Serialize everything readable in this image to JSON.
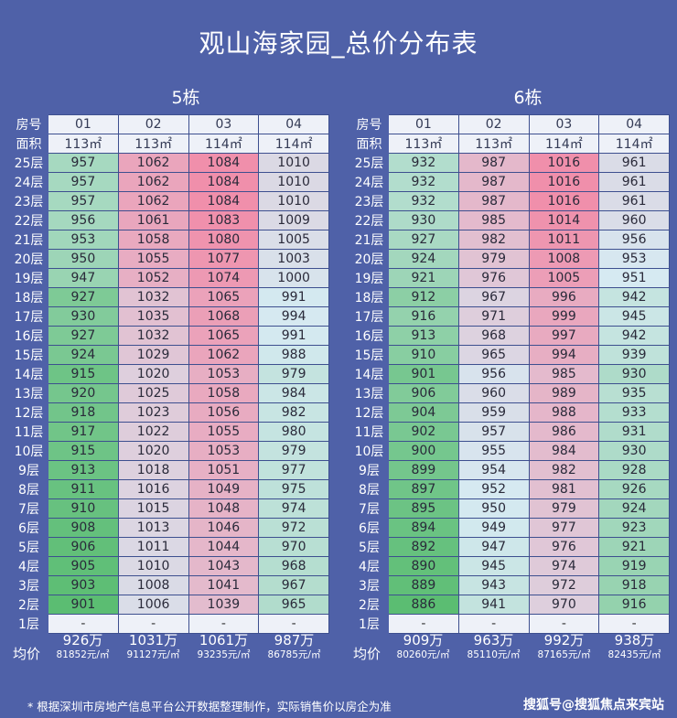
{
  "title": "观山海家园_总价分布表",
  "header_labels": {
    "room": "房号",
    "area": "面积",
    "avg": "均价"
  },
  "empty_mark": "-",
  "buildings": [
    {
      "name": "5栋",
      "units": [
        "01",
        "02",
        "03",
        "04"
      ],
      "areas": [
        "113㎡",
        "113㎡",
        "114㎡",
        "114㎡"
      ],
      "floors": [
        {
          "floor": "25层",
          "prices": [
            "957",
            "1062",
            "1084",
            "1010"
          ]
        },
        {
          "floor": "24层",
          "prices": [
            "957",
            "1062",
            "1084",
            "1010"
          ]
        },
        {
          "floor": "23层",
          "prices": [
            "957",
            "1062",
            "1084",
            "1010"
          ]
        },
        {
          "floor": "22层",
          "prices": [
            "956",
            "1061",
            "1083",
            "1009"
          ]
        },
        {
          "floor": "21层",
          "prices": [
            "953",
            "1058",
            "1080",
            "1005"
          ]
        },
        {
          "floor": "20层",
          "prices": [
            "950",
            "1055",
            "1077",
            "1003"
          ]
        },
        {
          "floor": "19层",
          "prices": [
            "947",
            "1052",
            "1074",
            "1000"
          ]
        },
        {
          "floor": "18层",
          "prices": [
            "927",
            "1032",
            "1065",
            "991"
          ]
        },
        {
          "floor": "17层",
          "prices": [
            "930",
            "1035",
            "1068",
            "994"
          ]
        },
        {
          "floor": "16层",
          "prices": [
            "927",
            "1032",
            "1065",
            "991"
          ]
        },
        {
          "floor": "15层",
          "prices": [
            "924",
            "1029",
            "1062",
            "988"
          ]
        },
        {
          "floor": "14层",
          "prices": [
            "915",
            "1020",
            "1053",
            "979"
          ]
        },
        {
          "floor": "13层",
          "prices": [
            "920",
            "1025",
            "1058",
            "984"
          ]
        },
        {
          "floor": "12层",
          "prices": [
            "918",
            "1023",
            "1056",
            "982"
          ]
        },
        {
          "floor": "11层",
          "prices": [
            "917",
            "1022",
            "1055",
            "980"
          ]
        },
        {
          "floor": "10层",
          "prices": [
            "915",
            "1020",
            "1053",
            "979"
          ]
        },
        {
          "floor": "9层",
          "prices": [
            "913",
            "1018",
            "1051",
            "977"
          ]
        },
        {
          "floor": "8层",
          "prices": [
            "911",
            "1016",
            "1049",
            "975"
          ]
        },
        {
          "floor": "7层",
          "prices": [
            "910",
            "1015",
            "1048",
            "974"
          ]
        },
        {
          "floor": "6层",
          "prices": [
            "908",
            "1013",
            "1046",
            "972"
          ]
        },
        {
          "floor": "5层",
          "prices": [
            "906",
            "1011",
            "1044",
            "970"
          ]
        },
        {
          "floor": "4层",
          "prices": [
            "905",
            "1010",
            "1043",
            "968"
          ]
        },
        {
          "floor": "3层",
          "prices": [
            "903",
            "1008",
            "1041",
            "967"
          ]
        },
        {
          "floor": "2层",
          "prices": [
            "901",
            "1006",
            "1039",
            "965"
          ]
        },
        {
          "floor": "1层",
          "prices": [
            "-",
            "-",
            "-",
            "-"
          ]
        }
      ],
      "totals": [
        "926万",
        "1031万",
        "1061万",
        "987万"
      ],
      "unit_prices": [
        "81852元/㎡",
        "91127元/㎡",
        "93235元/㎡",
        "86785元/㎡"
      ]
    },
    {
      "name": "6栋",
      "units": [
        "01",
        "02",
        "03",
        "04"
      ],
      "areas": [
        "113㎡",
        "113㎡",
        "114㎡",
        "114㎡"
      ],
      "floors": [
        {
          "floor": "25层",
          "prices": [
            "932",
            "987",
            "1016",
            "961"
          ]
        },
        {
          "floor": "24层",
          "prices": [
            "932",
            "987",
            "1016",
            "961"
          ]
        },
        {
          "floor": "23层",
          "prices": [
            "932",
            "987",
            "1016",
            "961"
          ]
        },
        {
          "floor": "22层",
          "prices": [
            "930",
            "985",
            "1014",
            "960"
          ]
        },
        {
          "floor": "21层",
          "prices": [
            "927",
            "982",
            "1011",
            "956"
          ]
        },
        {
          "floor": "20层",
          "prices": [
            "924",
            "979",
            "1008",
            "953"
          ]
        },
        {
          "floor": "19层",
          "prices": [
            "921",
            "976",
            "1005",
            "951"
          ]
        },
        {
          "floor": "18层",
          "prices": [
            "912",
            "967",
            "996",
            "942"
          ]
        },
        {
          "floor": "17层",
          "prices": [
            "916",
            "971",
            "999",
            "945"
          ]
        },
        {
          "floor": "16层",
          "prices": [
            "913",
            "968",
            "997",
            "942"
          ]
        },
        {
          "floor": "15层",
          "prices": [
            "910",
            "965",
            "994",
            "939"
          ]
        },
        {
          "floor": "14层",
          "prices": [
            "901",
            "956",
            "985",
            "930"
          ]
        },
        {
          "floor": "13层",
          "prices": [
            "906",
            "960",
            "989",
            "935"
          ]
        },
        {
          "floor": "12层",
          "prices": [
            "904",
            "959",
            "988",
            "933"
          ]
        },
        {
          "floor": "11层",
          "prices": [
            "902",
            "957",
            "986",
            "931"
          ]
        },
        {
          "floor": "10层",
          "prices": [
            "900",
            "955",
            "984",
            "930"
          ]
        },
        {
          "floor": "9层",
          "prices": [
            "899",
            "954",
            "982",
            "928"
          ]
        },
        {
          "floor": "8层",
          "prices": [
            "897",
            "952",
            "981",
            "926"
          ]
        },
        {
          "floor": "7层",
          "prices": [
            "895",
            "950",
            "979",
            "924"
          ]
        },
        {
          "floor": "6层",
          "prices": [
            "894",
            "949",
            "977",
            "923"
          ]
        },
        {
          "floor": "5层",
          "prices": [
            "892",
            "947",
            "976",
            "921"
          ]
        },
        {
          "floor": "4层",
          "prices": [
            "890",
            "945",
            "974",
            "919"
          ]
        },
        {
          "floor": "3层",
          "prices": [
            "889",
            "943",
            "972",
            "918"
          ]
        },
        {
          "floor": "2层",
          "prices": [
            "886",
            "941",
            "970",
            "916"
          ]
        },
        {
          "floor": "1层",
          "prices": [
            "-",
            "-",
            "-",
            "-"
          ]
        }
      ],
      "totals": [
        "909万",
        "963万",
        "992万",
        "938万"
      ],
      "unit_prices": [
        "80260元/㎡",
        "85110元/㎡",
        "87165元/㎡",
        "82435元/㎡"
      ]
    }
  ],
  "color_scale": {
    "low": "#5bbd72",
    "mid": "#d6eaf2",
    "high": "#f08fab"
  },
  "footnote": "* 根据深圳市房地产信息平台公开数据整理制作，实际销售价以房企为准",
  "watermark": "搜狐号@搜狐焦点来宾站"
}
